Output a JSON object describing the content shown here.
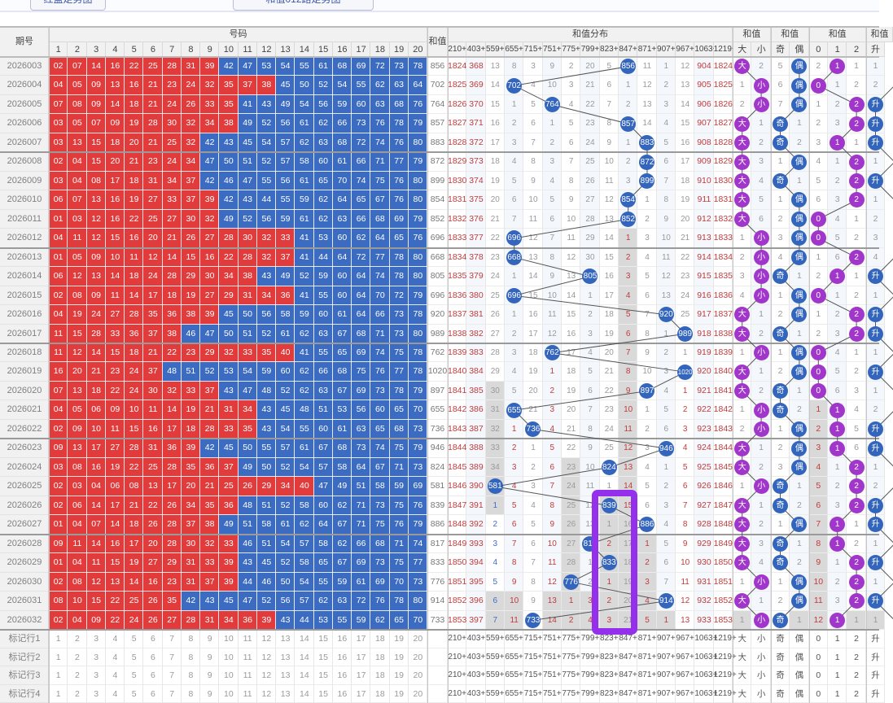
{
  "toolbar": {
    "button1": "红蓝走势图",
    "button2": "和值012路走势图"
  },
  "header": {
    "issue": "期号",
    "numbers": "号码",
    "sum": "和值",
    "dist": "和值分布",
    "group_bs": "和值",
    "group_oe": "和值",
    "group_mod": "和值",
    "group_ud": "和值",
    "num_cols": [
      "1",
      "2",
      "3",
      "4",
      "5",
      "6",
      "7",
      "8",
      "9",
      "10",
      "11",
      "12",
      "13",
      "14",
      "15",
      "16",
      "17",
      "18",
      "19",
      "20"
    ],
    "dist_cols": [
      "210+",
      "403+",
      "559+",
      "655+",
      "715+",
      "751+",
      "775+",
      "799+",
      "823+",
      "847+",
      "871+",
      "907+",
      "967+",
      "1063+",
      "1219+"
    ],
    "right_cols": [
      "大",
      "小",
      "奇",
      "偶",
      "0",
      "1",
      "2",
      "升"
    ]
  },
  "colors": {
    "red_cell": "#e13b3c",
    "blue_cell": "#3b6cc1",
    "circle_blue": "#3465bd",
    "circle_purple": "#a136cb",
    "text_red": "#c23b3b",
    "text_gray": "#9a9a9a",
    "text_blue": "#3f6ec7",
    "highlight": "#9430ec",
    "line": "#555555"
  },
  "rows": [
    {
      "issue": "2026003",
      "rc": 9,
      "nums": "02 07 14 16 22 25 28 31 39 42 47 53 54 55 61 68 69 72 73 78",
      "sum": "856",
      "dist": "1824 368 13 8 3 9 2 20 5 ●856 11 1 12 904 1824",
      "xr": [],
      "g": [],
      "b": [],
      "right": "●大 2 5 ●偶 2 ●1 1 1",
      "rxr": [],
      "rg": []
    },
    {
      "issue": "2026004",
      "rc": 12,
      "nums": "04 05 09 13 16 21 23 24 32 35 37 38 45 50 52 54 55 62 63 64",
      "sum": "702",
      "dist": "1825 369 14 ●702 4 10 3 21 6 1 12 2 13 905 1825",
      "xr": [],
      "g": [],
      "b": [],
      "right": "1 ●小 6 ●偶 ●0 1 2 2",
      "rxr": [],
      "rg": []
    },
    {
      "issue": "2026005",
      "rc": 10,
      "nums": "07 08 09 14 18 21 24 26 33 35 41 43 49 54 56 59 60 63 68 76",
      "sum": "764",
      "dist": "1826 370 15 1 5 ●764 4 22 7 2 13 3 14 906 1826",
      "xr": [],
      "g": [],
      "b": [],
      "right": "2 ●小 7 ●偶 1 2 ●2 ●升",
      "rxr": [],
      "rg": []
    },
    {
      "issue": "2026006",
      "rc": 10,
      "nums": "03 05 07 09 19 28 30 32 34 38 49 52 56 61 62 66 73 76 78 79",
      "sum": "857",
      "dist": "1827 371 16 2 6 1 5 23 8 ●857 14 4 15 907 1827",
      "xr": [],
      "g": [],
      "b": [],
      "right": "●大 1 ●奇 1 2 3 ●2 ●升",
      "rxr": [],
      "rg": []
    },
    {
      "issue": "2026007",
      "rc": 8,
      "nums": "03 13 15 18 20 21 25 32 42 43 45 54 57 62 63 68 72 74 76 80",
      "sum": "883",
      "dist": "1828 372 17 3 7 2 6 24 9 1 ●883 5 16 908 1828",
      "xr": [],
      "g": [],
      "b": [],
      "right": "●大 2 ●奇 2 3 ●1 1 ●升",
      "rxr": [],
      "rg": []
    },
    {
      "issue": "2026008",
      "rc": 8,
      "nums": "02 04 15 20 21 23 24 34 47 50 51 52 57 58 60 61 66 71 77 79",
      "sum": "872",
      "dist": "1829 373 18 4 8 3 7 25 10 2 ●872 6 17 909 1829",
      "xr": [],
      "g": [],
      "b": [],
      "right": "●大 3 1 ●偶 4 1 ●2 1",
      "rxr": [],
      "rg": []
    },
    {
      "issue": "2026009",
      "rc": 8,
      "nums": "03 04 08 17 18 31 34 37 42 46 47 55 56 61 65 70 74 75 76 80",
      "sum": "899",
      "dist": "1830 374 19 5 9 4 8 26 11 3 ●899 7 18 910 1830",
      "xr": [],
      "g": [],
      "b": [],
      "right": "●大 4 ●奇 1 5 2 ●2 ●升",
      "rxr": [],
      "rg": []
    },
    {
      "issue": "2026010",
      "rc": 9,
      "nums": "06 07 13 16 19 27 33 37 39 42 43 44 55 59 62 64 65 67 76 80",
      "sum": "854",
      "dist": "1831 375 20 6 10 5 9 27 12 ●854 1 8 19 911 1831",
      "xr": [],
      "g": [],
      "b": [],
      "right": "●大 5 1 ●偶 6 3 ●2 1",
      "rxr": [],
      "rg": []
    },
    {
      "issue": "2026011",
      "rc": 9,
      "nums": "01 03 12 16 22 25 27 30 32 49 52 56 59 61 62 63 66 68 69 79",
      "sum": "852",
      "dist": "1832 376 21 7 11 6 10 28 13 ●852 2 9 20 912 1832",
      "xr": [],
      "g": [],
      "b": [],
      "right": "●大 6 2 ●偶 ●0 4 1 2",
      "rxr": [],
      "rg": []
    },
    {
      "issue": "2026012",
      "rc": 13,
      "nums": "04 11 12 15 16 20 21 26 27 28 30 32 33 41 53 60 62 64 65 76",
      "sum": "696",
      "dist": "1833 377 22 ●696 12 7 11 29 14 1 3 10 21 913 1833",
      "xr": [
        9
      ],
      "g": [
        9
      ],
      "b": [],
      "right": "1 ●小 3 ●偶 ●0 5 2 3",
      "rxr": [],
      "rg": []
    },
    {
      "issue": "2026013",
      "rc": 13,
      "nums": "01 05 09 10 11 12 14 15 16 22 28 32 37 41 44 64 72 77 78 80",
      "sum": "668",
      "dist": "1834 378 23 ●668 13 8 12 30 15 2 4 11 22 914 1834",
      "xr": [
        9
      ],
      "g": [
        9
      ],
      "b": [],
      "right": "2 ●小 4 ●偶 1 6 ●2 4",
      "rxr": [],
      "rg": []
    },
    {
      "issue": "2026014",
      "rc": 11,
      "nums": "06 12 13 14 18 24 28 29 30 34 38 43 49 52 59 60 64 74 78 80",
      "sum": "805",
      "dist": "1835 379 24 1 14 9 13 ●805 16 3 5 12 23 915 1835",
      "xr": [
        9
      ],
      "g": [
        9
      ],
      "b": [],
      "right": "3 ●小 ●奇 1 2 ●1 1 ●升",
      "rxr": [],
      "rg": []
    },
    {
      "issue": "2026015",
      "rc": 13,
      "nums": "02 08 09 11 14 17 18 19 27 29 31 34 36 41 55 60 64 70 72 79",
      "sum": "696",
      "dist": "1836 380 25 ●696 15 10 14 1 17 4 6 13 24 916 1836",
      "xr": [
        9
      ],
      "g": [
        9
      ],
      "b": [],
      "right": "4 ●小 1 ●偶 ●0 1 2 1",
      "rxr": [],
      "rg": []
    },
    {
      "issue": "2026016",
      "rc": 9,
      "nums": "04 19 24 27 28 35 36 38 39 45 50 56 58 59 60 61 64 66 73 78",
      "sum": "920",
      "dist": "1837 381 26 1 16 11 15 2 18 5 7 ●920 25 917 1837",
      "xr": [
        9
      ],
      "g": [
        9
      ],
      "b": [],
      "right": "●大 1 2 ●偶 1 2 ●2 ●升",
      "rxr": [],
      "rg": []
    },
    {
      "issue": "2026017",
      "rc": 7,
      "nums": "11 15 28 33 36 37 38 46 47 50 51 52 61 62 63 67 68 71 73 80",
      "sum": "989",
      "dist": "1838 382 27 2 17 12 16 3 19 6 8 1 ●989 918 1838",
      "xr": [
        9
      ],
      "g": [
        9
      ],
      "b": [],
      "right": "●大 2 ●奇 1 2 3 ●2 ●升",
      "rxr": [],
      "rg": []
    },
    {
      "issue": "2026018",
      "rc": 13,
      "nums": "11 12 14 15 18 21 22 23 29 32 33 35 40 41 55 65 69 74 75 78",
      "sum": "762",
      "dist": "1839 383 28 3 18 ●762 17 4 20 7 9 2 1 919 1839",
      "xr": [
        9
      ],
      "g": [
        9
      ],
      "b": [],
      "right": "1 ●小 1 ●偶 ●0 4 1 1",
      "rxr": [],
      "rg": []
    },
    {
      "issue": "2026019",
      "rc": 6,
      "nums": "16 20 21 23 24 37 48 51 52 53 54 59 60 62 66 68 75 76 77 78",
      "sum": "1020",
      "dist": "1840 384 29 4 19 1 18 5 21 8 10 3 ●1020 920 1840",
      "xr": [
        5,
        9
      ],
      "g": [
        9
      ],
      "b": [],
      "right": "●大 1 2 ●偶 ●0 5 2 ●升",
      "rxr": [],
      "rg": []
    },
    {
      "issue": "2026020",
      "rc": 9,
      "nums": "07 13 18 22 24 30 32 33 37 43 47 48 52 62 63 67 69 73 78 79",
      "sum": "897",
      "dist": "1841 385 30 5 20 2 19 6 22 9 ●897 4 1 921 1841",
      "xr": [
        5,
        9,
        12
      ],
      "g": [
        2,
        9
      ],
      "b": [],
      "right": "●大 2 ●奇 1 ●0 6 3 1",
      "rxr": [],
      "rg": []
    },
    {
      "issue": "2026021",
      "rc": 11,
      "nums": "04 05 06 09 10 11 14 19 21 31 34 43 45 48 51 53 56 60 65 70",
      "sum": "655",
      "dist": "1842 386 31 ●655 21 3 20 7 23 10 1 5 2 922 1842",
      "xr": [
        5,
        9,
        12
      ],
      "g": [
        2,
        9
      ],
      "b": [],
      "right": "1 ●小 ●奇 2 1 ●1 4 2",
      "rxr": [
        4
      ],
      "rg": [
        4
      ]
    },
    {
      "issue": "2026022",
      "rc": 11,
      "nums": "02 09 10 11 15 16 17 18 28 33 35 43 54 55 60 61 63 65 68 73",
      "sum": "736",
      "dist": "1843 387 32 1 ●736 4 21 8 24 11 2 6 3 923 1843",
      "xr": [
        3,
        5,
        9,
        12
      ],
      "g": [
        2,
        9
      ],
      "b": [],
      "right": "2 ●小 1 ●偶 2 ●1 5 ●升",
      "rxr": [
        4
      ],
      "rg": [
        4
      ]
    },
    {
      "issue": "2026023",
      "rc": 8,
      "nums": "09 13 17 27 28 31 36 39 42 45 50 55 57 61 67 68 73 74 75 79",
      "sum": "946",
      "dist": "1844 388 33 2 1 5 22 9 25 12 3 ●946 4 924 1844",
      "xr": [
        3,
        5,
        9,
        12
      ],
      "g": [
        2,
        9
      ],
      "b": [],
      "right": "●大 1 2 ●偶 3 ●1 6 ●升",
      "rxr": [
        4
      ],
      "rg": [
        4
      ]
    },
    {
      "issue": "2026024",
      "rc": 10,
      "nums": "03 08 16 19 22 25 28 35 36 37 49 50 52 54 57 58 64 67 71 73",
      "sum": "824",
      "dist": "1845 389 34 3 2 6 23 10 ●824 13 4 1 5 925 1845",
      "xr": [
        3,
        5,
        9,
        12
      ],
      "g": [
        2,
        6,
        9
      ],
      "b": [],
      "right": "●大 2 3 ●偶 4 1 ●2 1",
      "rxr": [
        4
      ],
      "rg": [
        4
      ]
    },
    {
      "issue": "2026025",
      "rc": 14,
      "nums": "02 03 04 06 08 13 17 20 21 25 26 29 34 40 47 49 51 58 59 69",
      "sum": "581",
      "dist": "1846 390 ●581 4 3 7 24 11 1 14 5 2 6 926 1846",
      "xr": [
        3,
        5,
        9,
        12
      ],
      "g": [
        2,
        6,
        9
      ],
      "b": [],
      "right": "1 ●小 ●奇 1 5 2 ●2 2",
      "rxr": [
        4
      ],
      "rg": [
        4
      ]
    },
    {
      "issue": "2026026",
      "rc": 10,
      "nums": "02 06 14 17 21 22 26 34 35 36 48 51 52 58 60 62 71 73 75 76",
      "sum": "839",
      "dist": "1847 391 1 5 4 8 25 12 ●839 15 6 3 7 927 1847",
      "xr": [
        3,
        5,
        9,
        12
      ],
      "g": [
        2,
        6,
        8,
        9
      ],
      "b": [
        2
      ],
      "right": "●大 1 ●奇 2 6 3 ●2 ●升",
      "rxr": [
        4
      ],
      "rg": [
        4
      ]
    },
    {
      "issue": "2026027",
      "rc": 9,
      "nums": "01 04 07 14 18 26 28 37 38 49 51 58 61 62 64 67 71 75 76 79",
      "sum": "886",
      "dist": "1848 392 2 6 5 9 26 13 1 16 ●886 4 8 928 1848",
      "xr": [
        3,
        5,
        12
      ],
      "g": [
        6,
        8,
        9
      ],
      "b": [
        2
      ],
      "right": "●大 2 1 ●偶 7 ●1 1 ●升",
      "rxr": [
        4
      ],
      "rg": [
        4
      ]
    },
    {
      "issue": "2026028",
      "rc": 10,
      "nums": "09 11 14 16 17 20 28 30 32 33 46 51 54 57 58 62 66 68 71 74",
      "sum": "817",
      "dist": "1849 393 3 7 6 10 27 ●817 2 17 1 5 9 929 1849",
      "xr": [
        3,
        5,
        8,
        10,
        12
      ],
      "g": [
        6,
        8,
        9,
        10
      ],
      "b": [
        2
      ],
      "right": "●大 3 ●奇 1 8 ●1 2 1",
      "rxr": [
        4
      ],
      "rg": [
        4
      ]
    },
    {
      "issue": "2026029",
      "rc": 10,
      "nums": "01 04 11 15 19 27 29 31 33 39 43 45 52 58 65 67 69 73 75 77",
      "sum": "833",
      "dist": "1850 394 4 8 7 11 28 1 ●833 18 2 6 10 930 1850",
      "xr": [
        3,
        5,
        10,
        12
      ],
      "g": [
        6,
        8,
        9,
        10
      ],
      "b": [
        2
      ],
      "right": "●大 4 ●奇 2 9 1 ●2 ●升",
      "rxr": [
        4
      ],
      "rg": [
        4
      ]
    },
    {
      "issue": "2026030",
      "rc": 10,
      "nums": "02 08 12 13 14 16 23 31 37 39 44 46 50 54 55 59 61 69 70 73",
      "sum": "776",
      "dist": "1851 395 5 9 8 12 ●776 2 1 19 3 7 11 931 1851",
      "xr": [
        3,
        5,
        8,
        10,
        12
      ],
      "g": [
        6,
        8,
        9,
        10
      ],
      "b": [
        2
      ],
      "right": "1 ●小 1 ●偶 10 2 ●2 1",
      "rxr": [
        4
      ],
      "rg": [
        4
      ]
    },
    {
      "issue": "2026031",
      "rc": 7,
      "nums": "08 10 15 22 25 26 35 42 43 45 47 52 56 57 62 63 72 76 78 80",
      "sum": "914",
      "dist": "1852 396 6 10 9 13 1 3 2 20 4 ●914 12 932 1852",
      "xr": [
        3,
        5,
        6,
        7,
        8,
        10,
        12
      ],
      "g": [
        2,
        3,
        5,
        6,
        7,
        8,
        9,
        10
      ],
      "b": [
        2
      ],
      "right": "●大 1 2 ●偶 11 3 ●2 ●升",
      "rxr": [
        4
      ],
      "rg": [
        4
      ]
    },
    {
      "issue": "2026032",
      "rc": 12,
      "nums": "02 04 09 22 24 26 27 28 31 34 36 39 43 44 53 55 59 62 65 70",
      "sum": "733",
      "dist": "1853 397 7 11 ●733 14 2 4 3 21 5 1 13 933 1853",
      "xr": [
        3,
        5,
        6,
        7,
        8,
        10,
        11,
        12
      ],
      "g": [
        2,
        3,
        5,
        6,
        7,
        8,
        9,
        10,
        11
      ],
      "b": [
        2
      ],
      "right": "1 ●小 ●奇 1 12 ●1 1 1",
      "rxr": [
        4
      ],
      "rg": [
        0,
        3,
        4,
        6,
        7
      ]
    }
  ],
  "marker_rows": [
    {
      "label": "标记行1"
    },
    {
      "label": "标记行2"
    },
    {
      "label": "标记行3"
    },
    {
      "label": "标记行4"
    }
  ]
}
